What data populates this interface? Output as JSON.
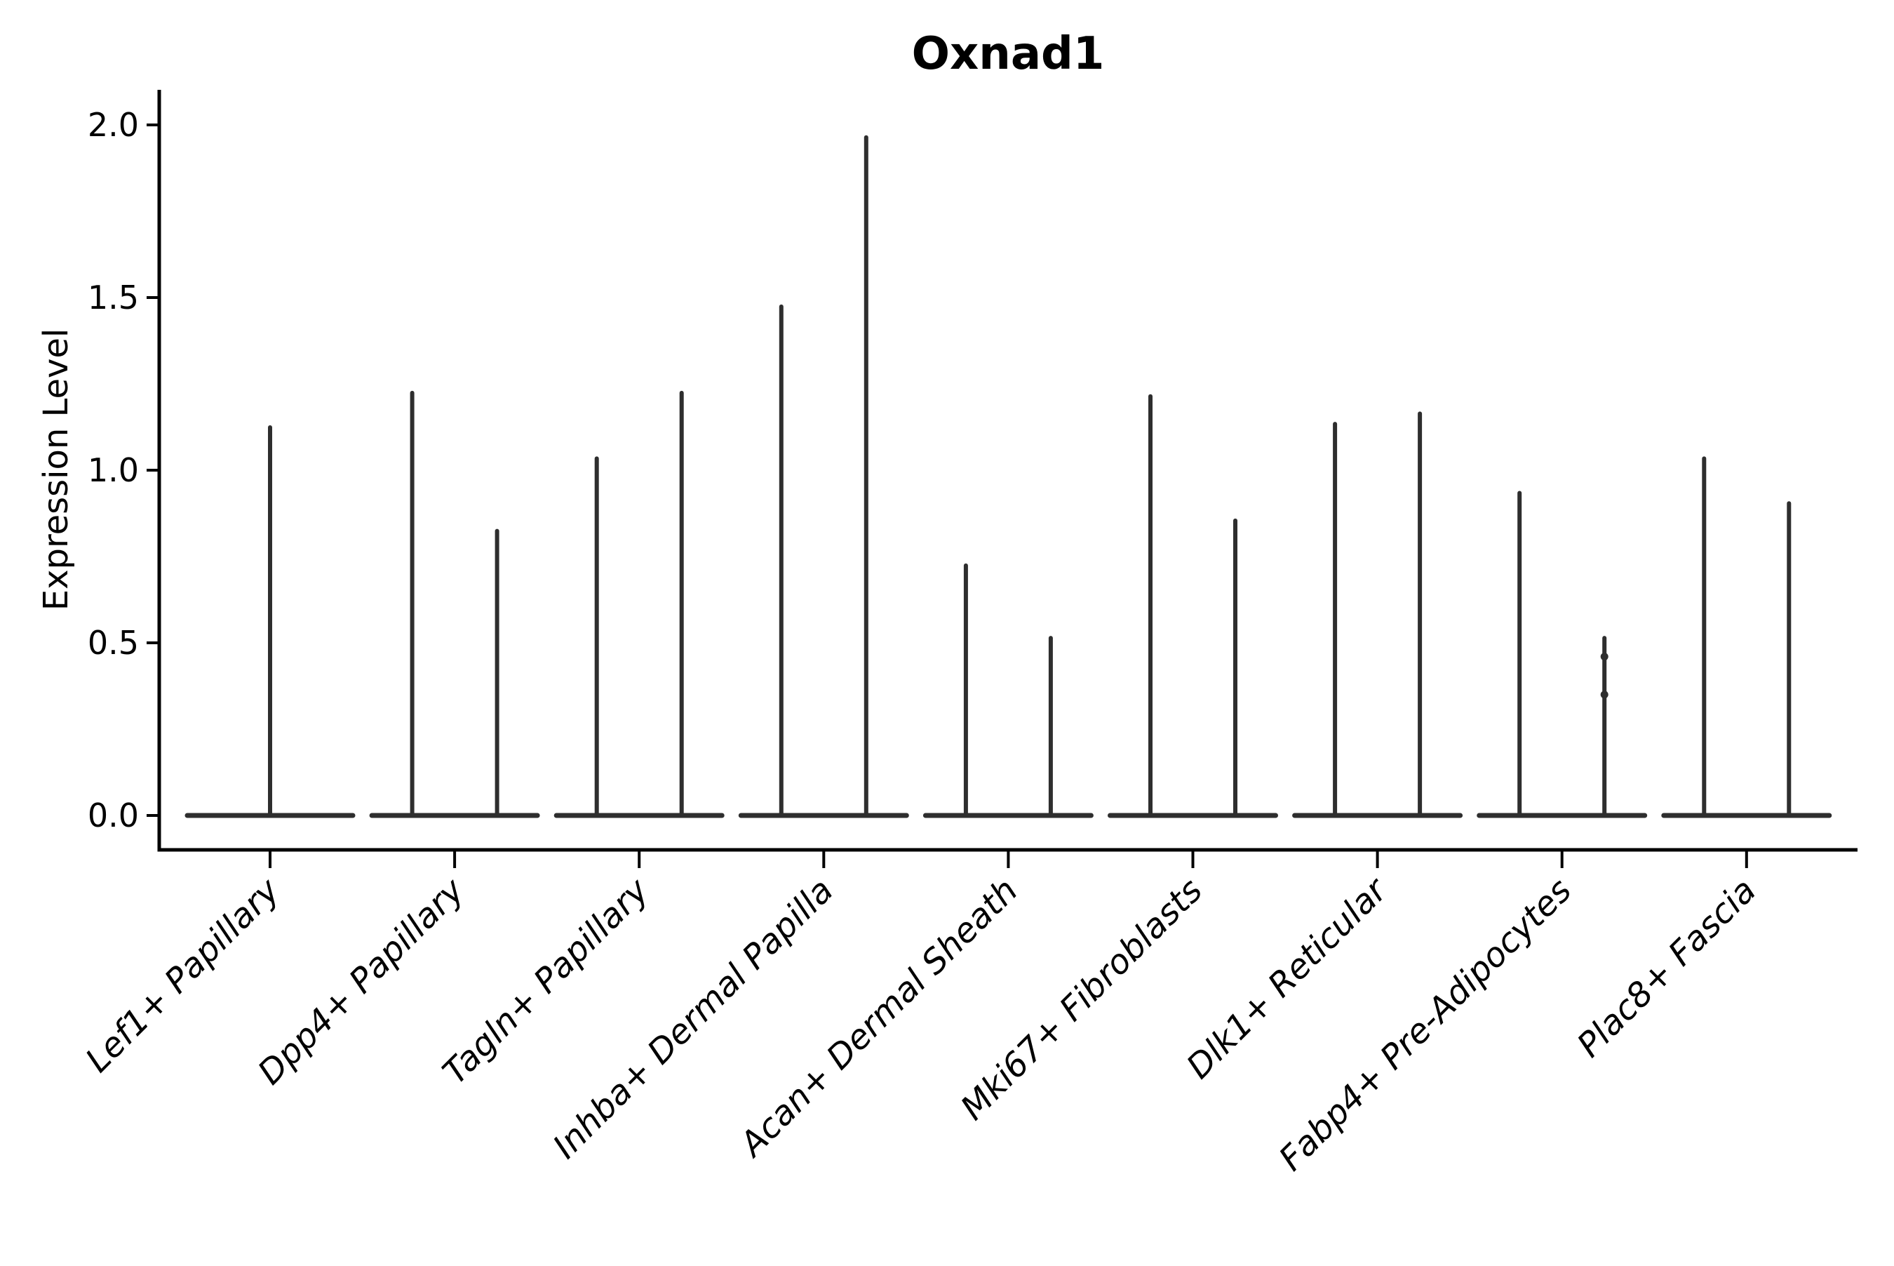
{
  "chart_data": {
    "type": "violin",
    "title": "Oxnad1",
    "xlabel": "",
    "ylabel": "Expression Level",
    "ytick_values": [
      0.0,
      0.5,
      1.0,
      1.5,
      2.0
    ],
    "ytick_labels": [
      "0.0",
      "0.5",
      "1.0",
      "1.5",
      "2.0"
    ],
    "ylim": [
      0.0,
      2.05
    ],
    "grid": false,
    "legend": "none",
    "x_tick_label_rotation_deg": 45,
    "description": "Collapsed violin plot of Oxnad1 expression per fibroblast cluster; most cells at 0 (flat base), thin spike to max expression. First category has one violin, all others have two adjacent violins.",
    "ink_color": "#2e2e2e",
    "axis_color": "#000000",
    "categories": [
      {
        "label": "Lef1+ Papillary",
        "violin_max": [
          1.13
        ]
      },
      {
        "label": "Dpp4+ Papillary",
        "violin_max": [
          1.23,
          0.83
        ]
      },
      {
        "label": "Tagln+ Papillary",
        "violin_max": [
          1.04,
          1.23
        ]
      },
      {
        "label": "Inhba+ Dermal Papilla",
        "violin_max": [
          1.48,
          1.97
        ]
      },
      {
        "label": "Acan+ Dermal Sheath",
        "violin_max": [
          0.73,
          0.52
        ]
      },
      {
        "label": "Mki67+ Fibroblasts",
        "violin_max": [
          1.22,
          0.86
        ]
      },
      {
        "label": "Dlk1+ Reticular",
        "violin_max": [
          1.14,
          1.17
        ]
      },
      {
        "label": "Fabp4+ Pre-Adipocytes",
        "violin_max": [
          0.94,
          0.52
        ]
      },
      {
        "label": "Plac8+ Fascia",
        "violin_max": [
          1.04,
          0.91
        ]
      }
    ],
    "extra_points": [
      {
        "category_index": 7,
        "violin_index": 1,
        "values": [
          0.46,
          0.35
        ]
      }
    ]
  }
}
